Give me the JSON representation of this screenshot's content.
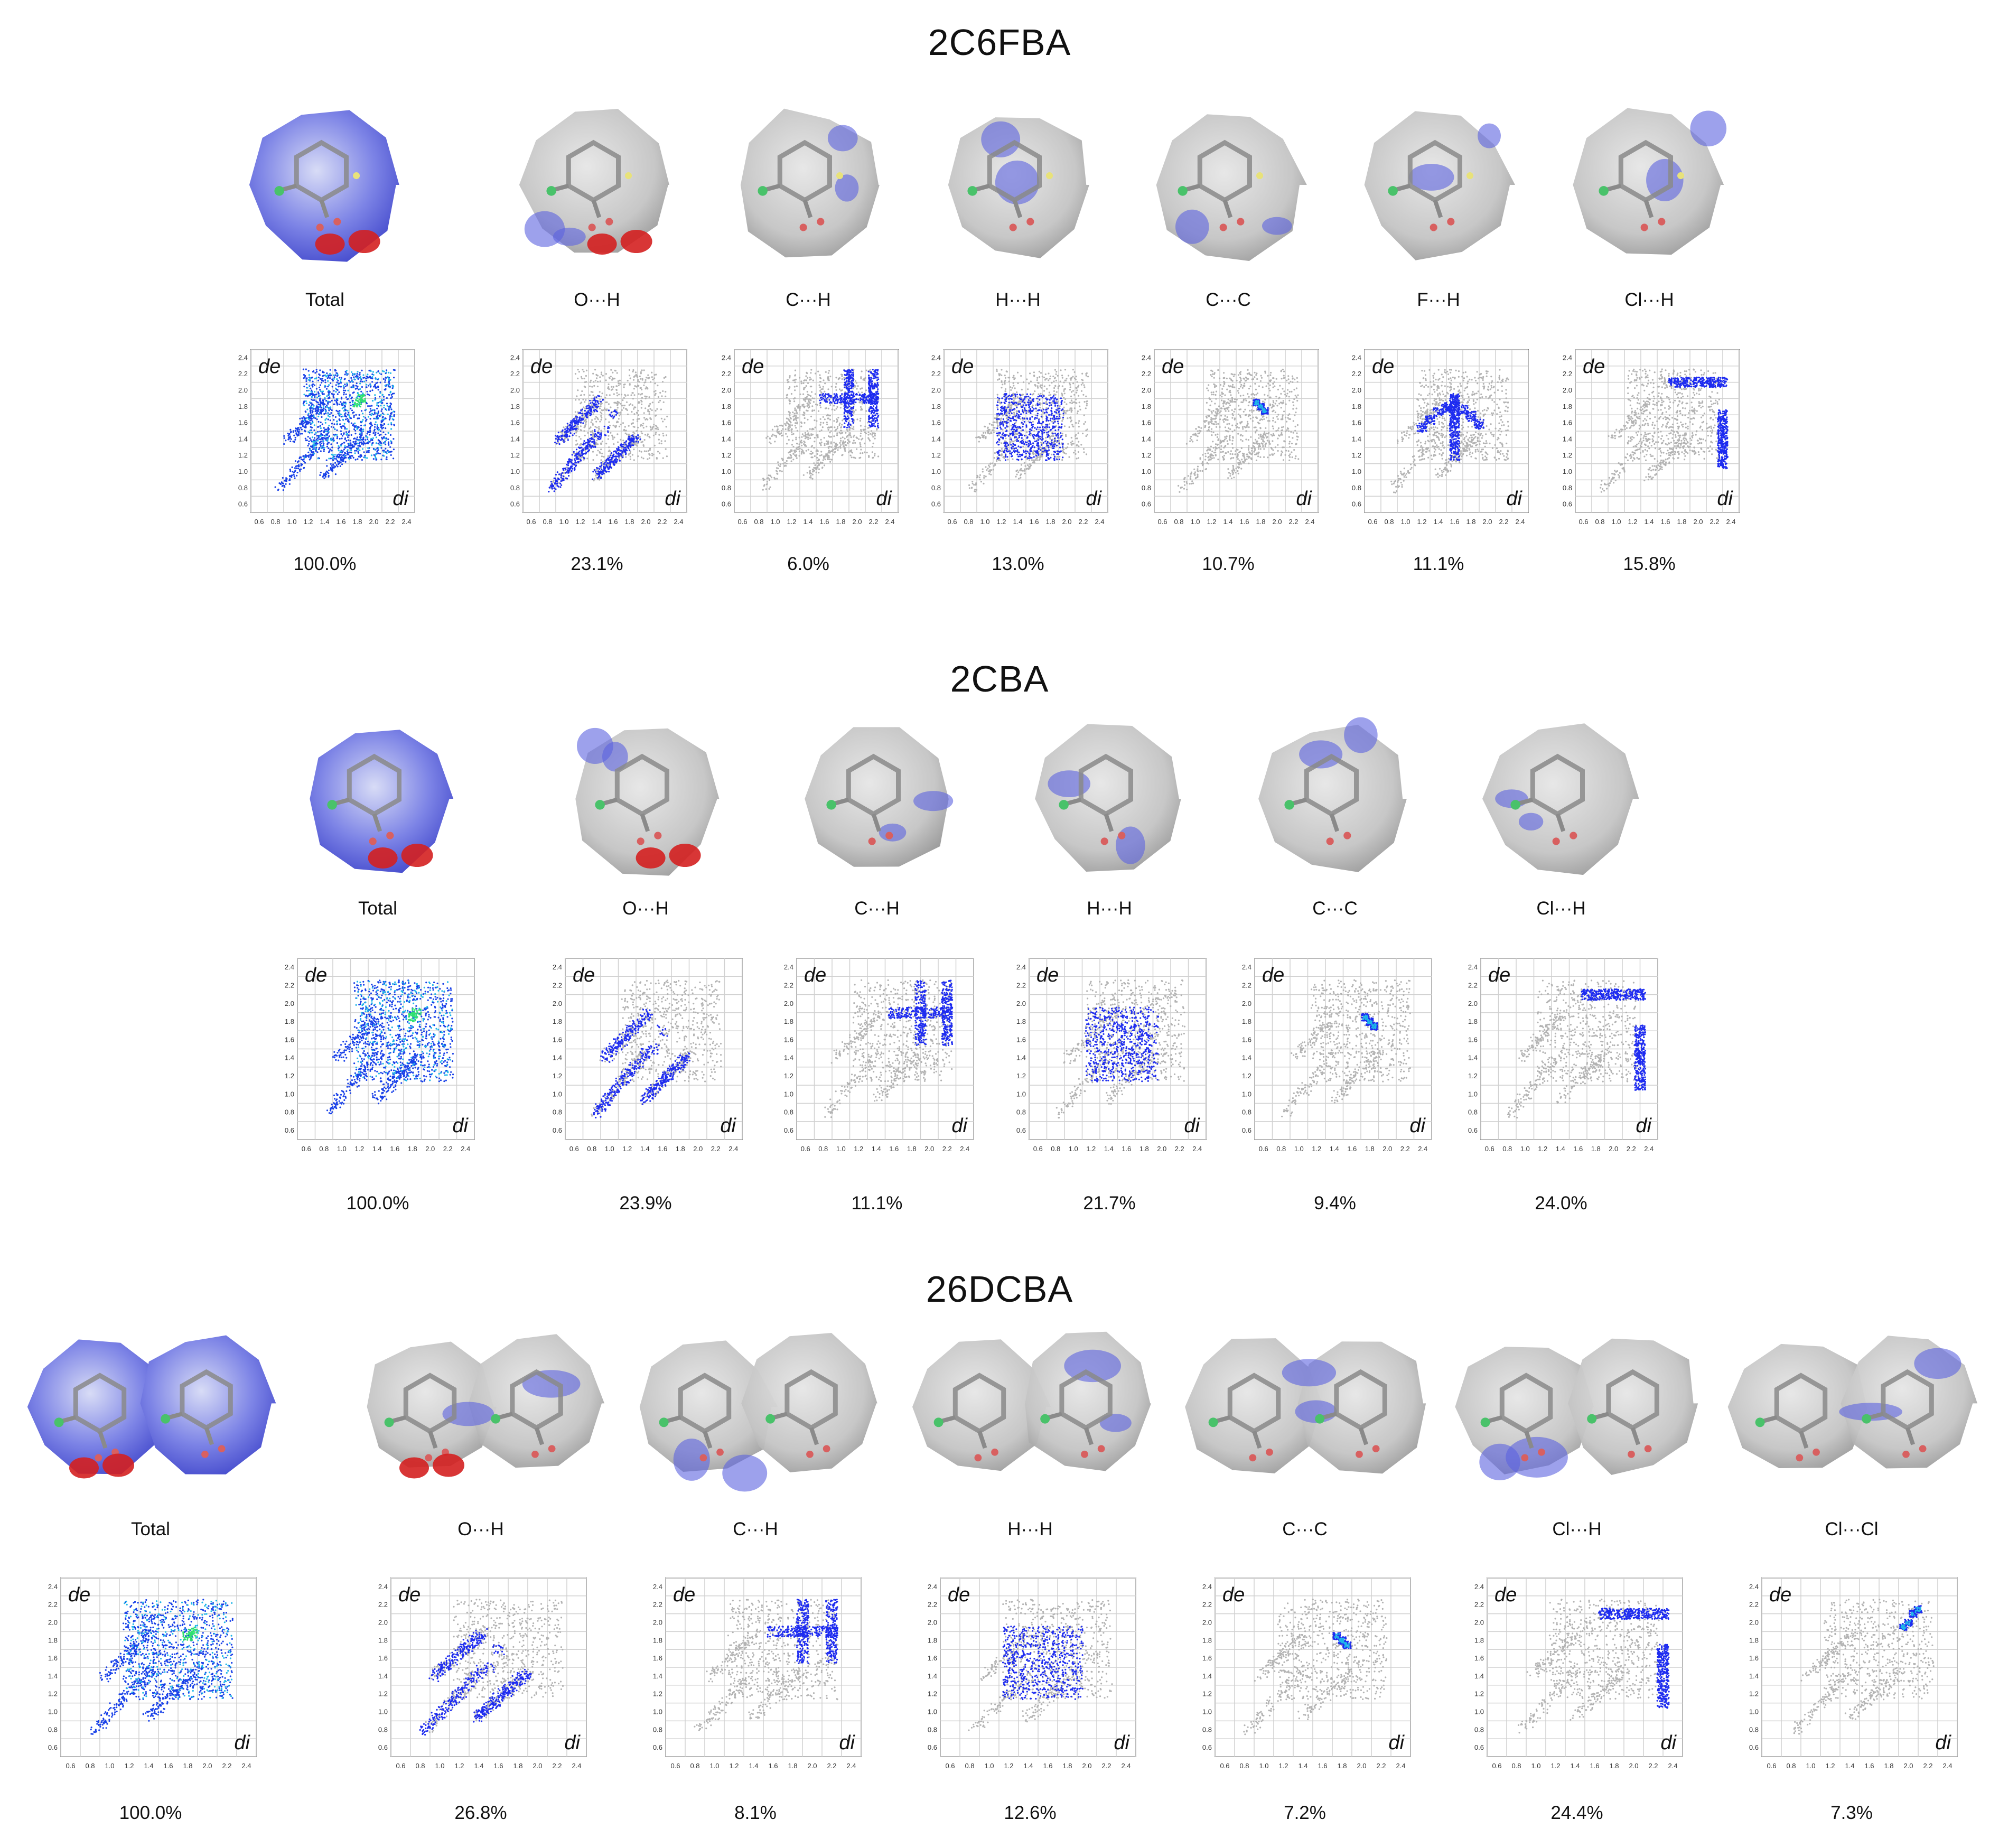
{
  "sections": [
    {
      "title": "2C6FBA",
      "panels": [
        {
          "label": "Total",
          "percent": "100.0%",
          "kind": "total"
        },
        {
          "label": "O···H",
          "percent": "23.1%",
          "kind": "OH"
        },
        {
          "label": "C···H",
          "percent": "6.0%",
          "kind": "CH"
        },
        {
          "label": "H···H",
          "percent": "13.0%",
          "kind": "HH"
        },
        {
          "label": "C···C",
          "percent": "10.7%",
          "kind": "CC"
        },
        {
          "label": "F···H",
          "percent": "11.1%",
          "kind": "FH"
        },
        {
          "label": "Cl···H",
          "percent": "15.8%",
          "kind": "ClH"
        }
      ]
    },
    {
      "title": "2CBA",
      "panels": [
        {
          "label": "Total",
          "percent": "100.0%",
          "kind": "total"
        },
        {
          "label": "O···H",
          "percent": "23.9%",
          "kind": "OH"
        },
        {
          "label": "C···H",
          "percent": "11.1%",
          "kind": "CH"
        },
        {
          "label": "H···H",
          "percent": "21.7%",
          "kind": "HH"
        },
        {
          "label": "C···C",
          "percent": "9.4%",
          "kind": "CC"
        },
        {
          "label": "Cl···H",
          "percent": "24.0%",
          "kind": "ClH"
        }
      ]
    },
    {
      "title": "26DCBA",
      "panels": [
        {
          "label": "Total",
          "percent": "100.0%",
          "kind": "total"
        },
        {
          "label": "O···H",
          "percent": "26.8%",
          "kind": "OH"
        },
        {
          "label": "C···H",
          "percent": "8.1%",
          "kind": "CH"
        },
        {
          "label": "H···H",
          "percent": "12.6%",
          "kind": "HH"
        },
        {
          "label": "C···C",
          "percent": "7.2%",
          "kind": "CC"
        },
        {
          "label": "Cl···H",
          "percent": "24.4%",
          "kind": "ClH"
        },
        {
          "label": "Cl···Cl",
          "percent": "7.3%",
          "kind": "ClCl"
        }
      ]
    }
  ],
  "fingerprint_axes": {
    "ylabel": "de",
    "xlabel": "di",
    "ticks": [
      "0.6",
      "0.8",
      "1.0",
      "1.2",
      "1.4",
      "1.6",
      "1.8",
      "2.0",
      "2.2",
      "2.4"
    ]
  },
  "colors": {
    "surface_grey": "#c9c9c9",
    "surface_blue": "#5b63e0",
    "surface_red": "#d42020",
    "fp_grey": "#b3b3b3",
    "fp_blue": "#1e2cf0",
    "fp_cyan": "#1fb6e8",
    "fp_green": "#30e070",
    "atom_green": "#49c26a",
    "atom_red": "#d86060",
    "atom_yellow": "#e8e27a"
  }
}
